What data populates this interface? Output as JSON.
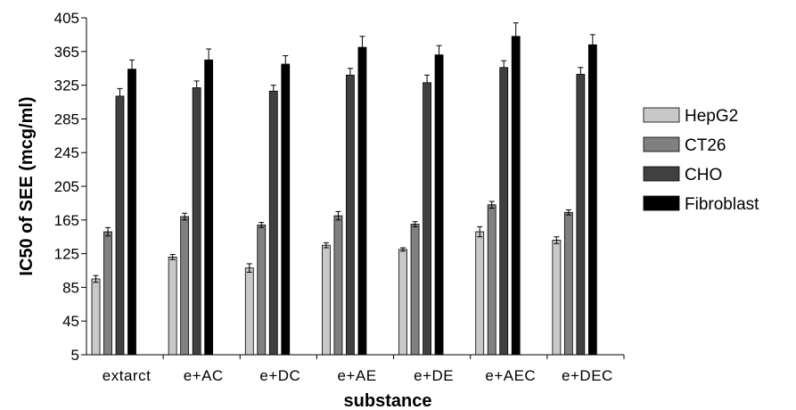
{
  "chart_data": {
    "type": "bar",
    "title": "",
    "xlabel": "substance",
    "ylabel": "IC50 of SEE (mcg/ml)",
    "ylim": [
      5,
      405
    ],
    "yticks": [
      5,
      45,
      85,
      125,
      165,
      205,
      245,
      285,
      325,
      365,
      405
    ],
    "grid": false,
    "legend_position": "right",
    "categories": [
      "extarct",
      "e+AC",
      "e+DC",
      "e+AE",
      "e+DE",
      "e+AEC",
      "e+DEC"
    ],
    "series": [
      {
        "name": "HepG2",
        "color": "#c8c8c8",
        "values": [
          95,
          121,
          108,
          135,
          130,
          151,
          141
        ],
        "errors": [
          4,
          3,
          5,
          3,
          2,
          6,
          4
        ]
      },
      {
        "name": "CT26",
        "color": "#808080",
        "values": [
          151,
          169,
          159,
          170,
          160,
          183,
          174
        ],
        "errors": [
          5,
          4,
          3,
          5,
          3,
          4,
          3
        ]
      },
      {
        "name": "CHO",
        "color": "#404040",
        "values": [
          312,
          322,
          318,
          337,
          328,
          346,
          338
        ],
        "errors": [
          9,
          8,
          7,
          8,
          9,
          8,
          8
        ]
      },
      {
        "name": "Fibroblast",
        "color": "#000000",
        "values": [
          344,
          355,
          350,
          370,
          361,
          383,
          373
        ],
        "errors": [
          11,
          13,
          10,
          13,
          11,
          16,
          12
        ]
      }
    ]
  }
}
